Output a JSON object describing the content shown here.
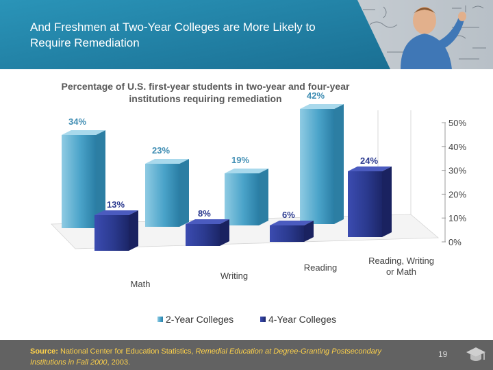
{
  "slide": {
    "title": "And Freshmen at Two-Year Colleges are More Likely to Require Remediation",
    "page_number": "19"
  },
  "source": {
    "label": "Source:",
    "text_before": " National Center for Education Statistics, ",
    "italic_title": "Remedial Education at Degree-Granting Postsecondary Institutions in Fall 2000",
    "text_after": ", 2003."
  },
  "chart_data": {
    "type": "bar",
    "title": "Percentage of U.S. first-year students in two-year and four-year institutions requiring remediation",
    "categories": [
      "Math",
      "Writing",
      "Reading",
      "Reading, Writing or Math"
    ],
    "series": [
      {
        "name": "2-Year Colleges",
        "values": [
          34,
          23,
          19,
          42
        ],
        "labels": [
          "34%",
          "23%",
          "19%",
          "42%"
        ]
      },
      {
        "name": "4-Year Colleges",
        "values": [
          13,
          8,
          6,
          24
        ],
        "labels": [
          "13%",
          "8%",
          "6%",
          "24%"
        ]
      }
    ],
    "yticks": [
      "0%",
      "10%",
      "20%",
      "30%",
      "40%",
      "50%"
    ],
    "ylim": [
      0,
      50
    ],
    "legend_position": "bottom",
    "colors": {
      "two_year": "#4aa3c9",
      "four_year": "#2b3a8f",
      "header_teal": "#1e7ea3"
    }
  }
}
